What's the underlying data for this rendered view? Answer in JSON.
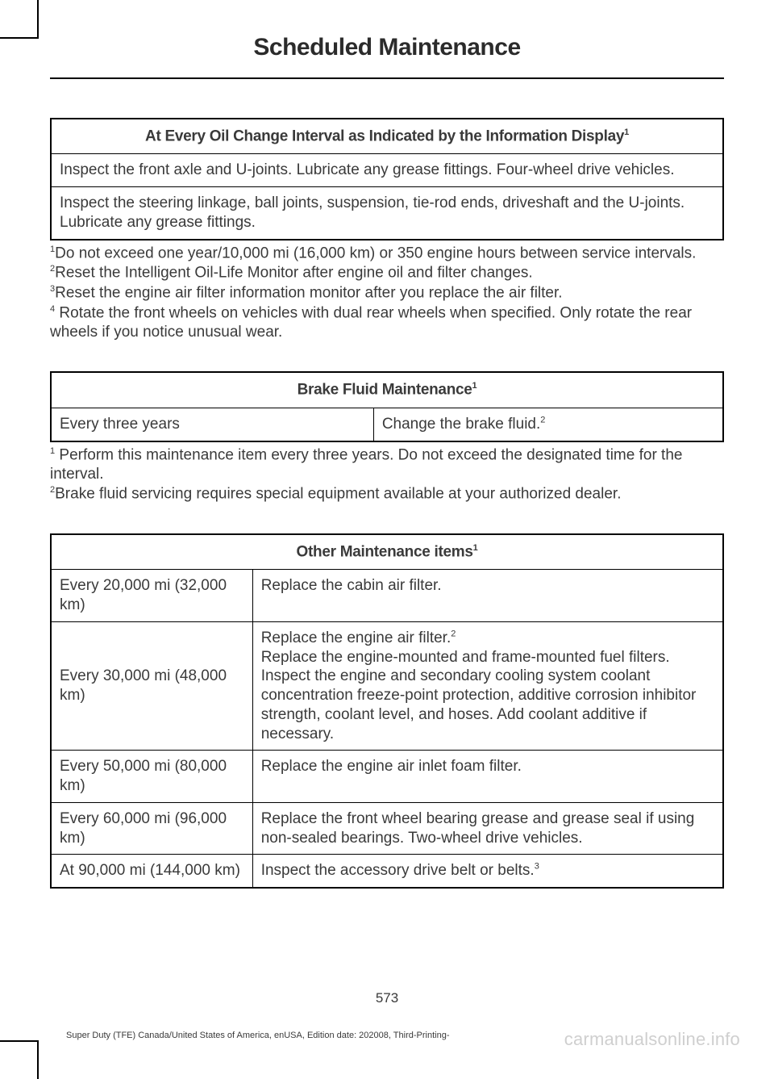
{
  "page": {
    "title": "Scheduled Maintenance",
    "number": "573",
    "footer_left": "Super Duty (TFE) Canada/United States of America, enUSA, Edition date: 202008, Third-Printing-",
    "watermark": "carmanualsonline.info"
  },
  "table1": {
    "header": "At Every Oil Change Interval as Indicated by the Information Display",
    "header_sup": "1",
    "row1": "Inspect the front axle and U-joints. Lubricate any grease fittings. Four-wheel drive vehicles.",
    "row2": "Inspect the steering linkage, ball joints, suspension, tie-rod ends, driveshaft and the U-joints. Lubricate any grease fittings."
  },
  "footnotes1": {
    "n1_sup": "1",
    "n1": "Do not exceed one year/10,000 mi (16,000 km) or 350 engine hours between service intervals.",
    "n2_sup": "2",
    "n2": "Reset the Intelligent Oil-Life Monitor after engine oil and filter changes.",
    "n3_sup": "3",
    "n3": "Reset the engine air filter information monitor after you replace the air filter.",
    "n4_sup": "4",
    "n4": " Rotate the front wheels on vehicles with dual rear wheels when specified. Only rotate the rear wheels if you notice unusual wear."
  },
  "table2": {
    "header": "Brake Fluid Maintenance",
    "header_sup": "1",
    "left": "Every three years",
    "right": "Change the brake fluid.",
    "right_sup": "2"
  },
  "footnotes2": {
    "n1_sup": "1",
    "n1": " Perform this maintenance item every three years. Do not exceed the designated time for the interval.",
    "n2_sup": "2",
    "n2": "Brake fluid servicing requires special equipment available at your authorized dealer."
  },
  "table3": {
    "header": "Other Maintenance items",
    "header_sup": "1",
    "rows": [
      {
        "left": "Every 20,000 mi (32,000 km)",
        "right": "Replace the cabin air filter."
      },
      {
        "left": "Every 30,000 mi (48,000 km)",
        "right_line1": "Replace the engine air filter.",
        "right_sup1": "2",
        "right_rest": "Replace the engine-mounted and frame-mounted fuel filters.\nInspect the engine and secondary cooling system coolant concentration freeze-point protection, additive corrosion inhibitor strength, coolant level, and hoses. Add coolant additive if necessary."
      },
      {
        "left": "Every 50,000 mi (80,000 km)",
        "right": "Replace the engine air inlet foam filter."
      },
      {
        "left": "Every 60,000 mi (96,000 km)",
        "right": "Replace the front wheel bearing grease and grease seal if using non-sealed bearings. Two-wheel drive vehicles."
      },
      {
        "left": "At 90,000 mi (144,000 km)",
        "right": "Inspect the accessory drive belt or belts.",
        "right_sup": "3"
      }
    ]
  },
  "colors": {
    "text": "#3a3a3a",
    "border": "#000000",
    "watermark": "#cfcfcf",
    "bg": "#ffffff"
  }
}
